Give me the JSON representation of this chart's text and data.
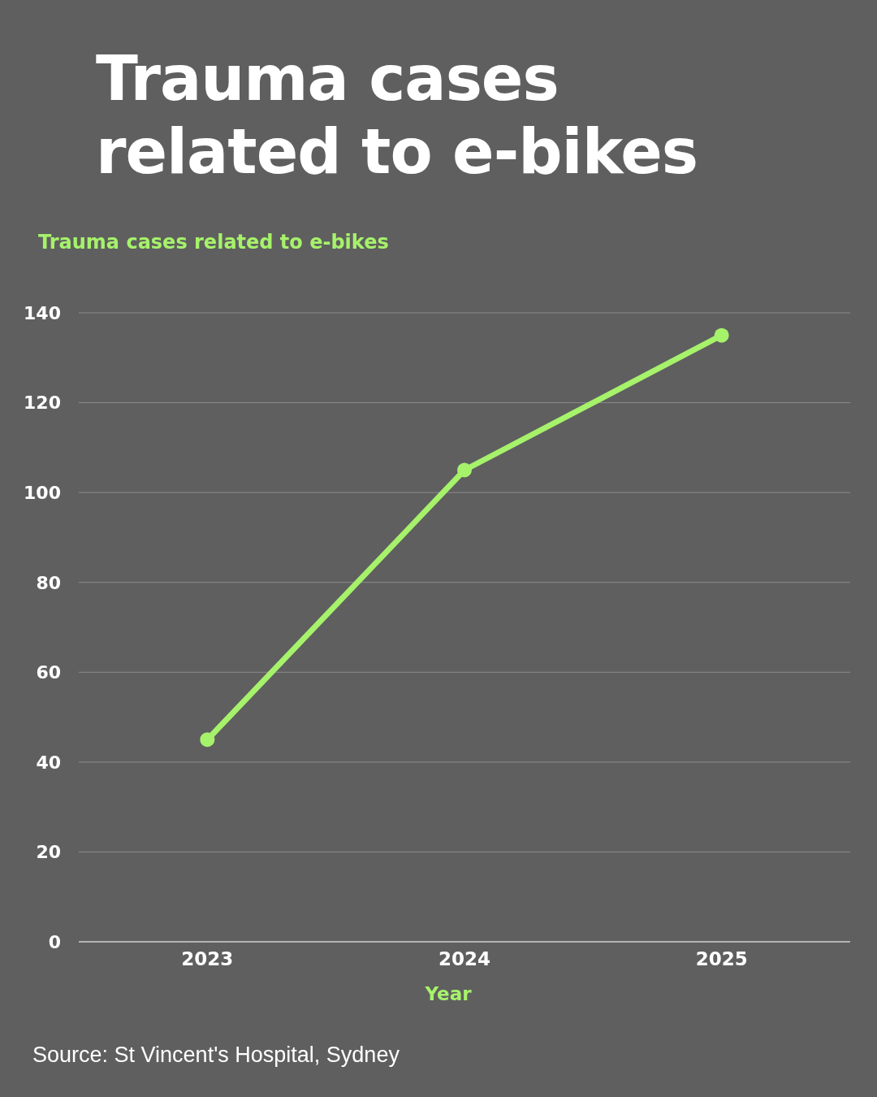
{
  "chart_data": {
    "type": "line",
    "title": "Trauma cases related to e-bikes",
    "ylabel": "Trauma cases related to e-bikes",
    "xlabel": "Year",
    "categories": [
      "2023",
      "2024",
      "2025"
    ],
    "series": [
      {
        "color": "#a6f26b",
        "values": [
          45,
          105,
          135
        ]
      }
    ],
    "ylim": [
      0,
      140
    ],
    "yticks": [
      0,
      20,
      40,
      60,
      80,
      100,
      120,
      140
    ],
    "grid": "y",
    "marker": "circle",
    "line_style": "solid",
    "annotations": [
      "Source: St Vincent's Hospital, Sydney"
    ]
  }
}
